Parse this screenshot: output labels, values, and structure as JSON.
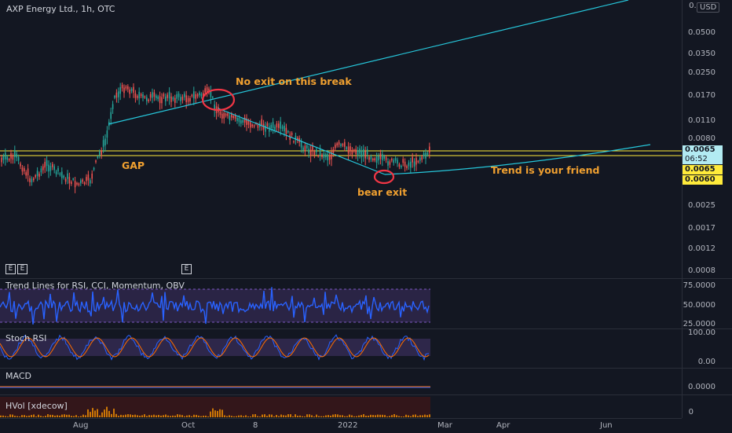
{
  "header": {
    "title": "AXP Energy Ltd., 1h, OTC",
    "currency": "USD"
  },
  "price_axis": {
    "ticks": [
      "0.0500",
      "0.0350",
      "0.0250",
      "0.0170",
      "0.0110",
      "0.0080",
      "0.0025",
      "0.0017",
      "0.0012",
      "0.0008"
    ],
    "top_tick": "0.0",
    "current_price": "0.0065",
    "countdown": "06:52",
    "tag_high": "0.0065",
    "tag_low": "0.0060"
  },
  "rsi_axis": {
    "ticks": [
      "75.0000",
      "50.0000",
      "25.0000"
    ]
  },
  "stoch_axis": {
    "ticks": [
      "100.00",
      "0.00"
    ]
  },
  "macd_axis": {
    "ticks": [
      "0.0000"
    ]
  },
  "hvol_axis": {
    "ticks": [
      "0"
    ]
  },
  "panes": {
    "rsi_label": "Trend Lines for RSI, CCI, Momentum, OBV",
    "stoch_label": "Stoch RSI",
    "macd_label": "MACD",
    "hvol_label": "HVol [xdecow]"
  },
  "earnings_marker": "E",
  "annotations": {
    "no_exit": "No exit on this break",
    "gap": "GAP",
    "trend_friend": "Trend is your friend",
    "bear_exit": "bear exit"
  },
  "time_axis": [
    "Aug",
    "Oct",
    "8",
    "2022",
    "Mar",
    "Apr",
    "Jun"
  ],
  "colors": {
    "background": "#131722",
    "trendline": "#26c6da",
    "annotation": "#f0a030",
    "up_candle": "#26a69a",
    "down_candle": "#ef5350",
    "rsi_line": "#2962ff",
    "band": "#7e57c2",
    "circle": "#f23645",
    "price_tag": "#ffeb3b",
    "current_tag": "#b2ebf2"
  }
}
